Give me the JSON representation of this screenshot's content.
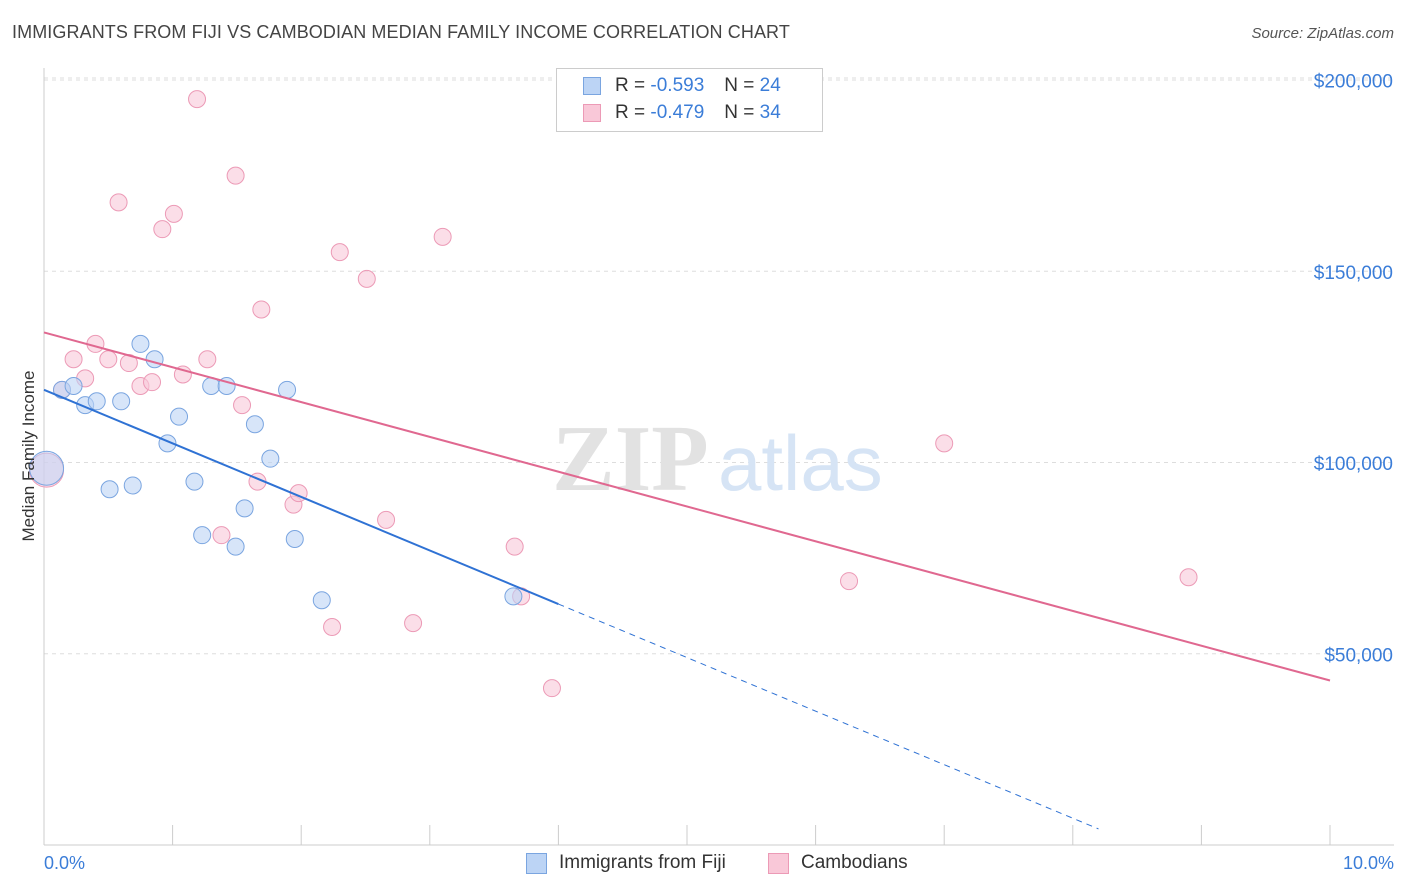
{
  "title": "IMMIGRANTS FROM FIJI VS CAMBODIAN MEDIAN FAMILY INCOME CORRELATION CHART",
  "source": "Source: ZipAtlas.com",
  "watermark": {
    "zip": "ZIP",
    "atlas": "atlas"
  },
  "legend": {
    "r_label": "R =",
    "n_label": "N =",
    "rows": [
      {
        "r": "-0.593",
        "n": "24"
      },
      {
        "r": "-0.479",
        "n": "34"
      }
    ]
  },
  "colors": {
    "fiji_fill": "#bcd4f5",
    "fiji_stroke": "#7aa5e0",
    "fiji_line": "#2f72d4",
    "camb_fill": "#f9c8d8",
    "camb_stroke": "#ec9ab6",
    "camb_line": "#e06890",
    "grid": "#dddddd",
    "label": "#3b7dd8"
  },
  "chart_data": {
    "type": "scatter",
    "title": "IMMIGRANTS FROM FIJI VS CAMBODIAN MEDIAN FAMILY INCOME CORRELATION CHART",
    "xlabel": "",
    "ylabel": "Median Family Income",
    "xlim": [
      0,
      10
    ],
    "ylim": [
      0,
      210000
    ],
    "x_tick_labels": [
      "0.0%",
      "10.0%"
    ],
    "y_ticks": [
      200000,
      150000,
      100000,
      50000
    ],
    "y_tick_labels": [
      "$200,000",
      "$150,000",
      "$100,000",
      "$50,000"
    ],
    "series": [
      {
        "name": "Immigrants from Fiji",
        "r": -0.593,
        "n": 24,
        "points": [
          [
            0.02,
            98500
          ],
          [
            0.14,
            119000
          ],
          [
            0.23,
            120000
          ],
          [
            0.32,
            115000
          ],
          [
            0.41,
            116000
          ],
          [
            0.51,
            93000
          ],
          [
            0.6,
            116000
          ],
          [
            0.69,
            94000
          ],
          [
            0.75,
            131000
          ],
          [
            0.86,
            127000
          ],
          [
            0.96,
            105000
          ],
          [
            1.05,
            112000
          ],
          [
            1.17,
            95000
          ],
          [
            1.23,
            81000
          ],
          [
            1.3,
            120000
          ],
          [
            1.42,
            120000
          ],
          [
            1.49,
            78000
          ],
          [
            1.56,
            88000
          ],
          [
            1.64,
            110000
          ],
          [
            1.76,
            101000
          ],
          [
            1.89,
            119000
          ],
          [
            1.95,
            80000
          ],
          [
            2.16,
            64000
          ],
          [
            3.65,
            65000
          ]
        ],
        "trend": {
          "x0": 0.0,
          "y0": 119000,
          "x1": 4.0,
          "y1": 63000,
          "dashed_to_x": 8.2
        }
      },
      {
        "name": "Cambodians",
        "r": -0.479,
        "n": 34,
        "points": [
          [
            0.02,
            98000
          ],
          [
            0.14,
            119000
          ],
          [
            0.23,
            127000
          ],
          [
            0.32,
            122000
          ],
          [
            0.4,
            131000
          ],
          [
            0.5,
            127000
          ],
          [
            0.58,
            168000
          ],
          [
            0.66,
            126000
          ],
          [
            0.75,
            120000
          ],
          [
            0.84,
            121000
          ],
          [
            0.92,
            161000
          ],
          [
            1.01,
            165000
          ],
          [
            1.08,
            123000
          ],
          [
            1.19,
            195000
          ],
          [
            1.27,
            127000
          ],
          [
            1.38,
            81000
          ],
          [
            1.49,
            175000
          ],
          [
            1.54,
            115000
          ],
          [
            1.66,
            95000
          ],
          [
            1.69,
            140000
          ],
          [
            1.94,
            89000
          ],
          [
            1.98,
            92000
          ],
          [
            2.24,
            57000
          ],
          [
            2.3,
            155000
          ],
          [
            2.51,
            148000
          ],
          [
            2.66,
            85000
          ],
          [
            2.87,
            58000
          ],
          [
            3.1,
            159000
          ],
          [
            3.66,
            78000
          ],
          [
            3.71,
            65000
          ],
          [
            3.95,
            41000
          ],
          [
            6.26,
            69000
          ],
          [
            7.0,
            105000
          ],
          [
            8.9,
            70000
          ]
        ],
        "trend": {
          "x0": 0.0,
          "y0": 134000,
          "x1": 10.0,
          "y1": 43000
        }
      }
    ]
  }
}
